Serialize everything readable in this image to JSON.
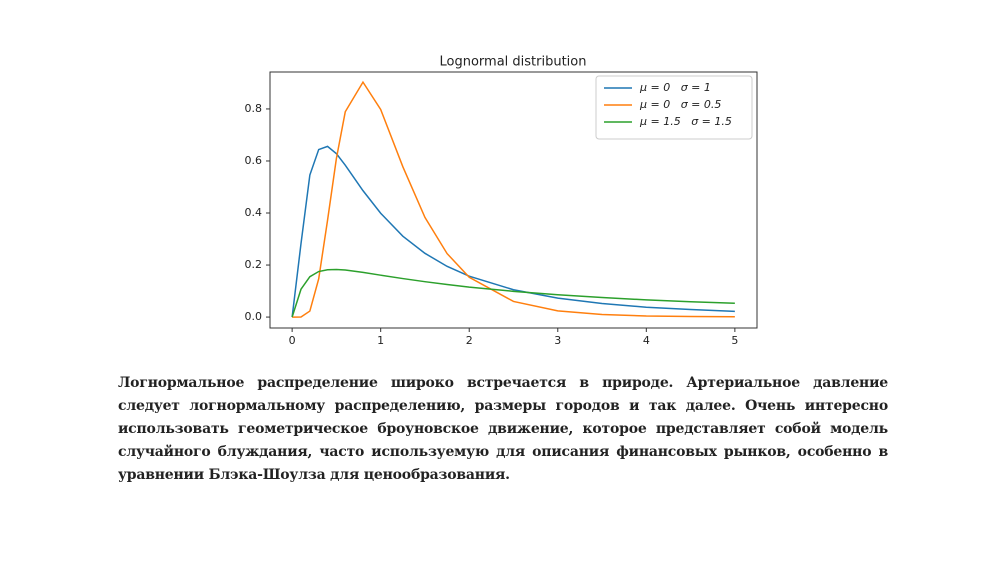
{
  "chart_data": {
    "type": "line",
    "title": "Lognormal distribution",
    "x": [
      0,
      0.1,
      0.2,
      0.3,
      0.4,
      0.5,
      0.6,
      0.8,
      1,
      1.25,
      1.5,
      1.75,
      2,
      2.5,
      3,
      3.5,
      4,
      4.5,
      5
    ],
    "series": [
      {
        "name": "μ = 0   σ = 1",
        "color": "#1f77b4",
        "values": [
          0,
          0.282,
          0.546,
          0.644,
          0.656,
          0.628,
          0.584,
          0.486,
          0.399,
          0.311,
          0.245,
          0.195,
          0.157,
          0.105,
          0.073,
          0.052,
          0.038,
          0.029,
          0.022
        ]
      },
      {
        "name": "μ = 0   σ = 0.5",
        "color": "#ff7f0e",
        "values": [
          0,
          0.0002,
          0.023,
          0.147,
          0.372,
          0.61,
          0.789,
          0.903,
          0.798,
          0.578,
          0.383,
          0.244,
          0.153,
          0.06,
          0.024,
          0.01,
          0.004,
          0.002,
          0.001
        ]
      },
      {
        "name": "μ = 1.5   σ = 1.5",
        "color": "#2ca02c",
        "values": [
          0,
          0.107,
          0.155,
          0.175,
          0.182,
          0.183,
          0.181,
          0.172,
          0.161,
          0.148,
          0.136,
          0.125,
          0.115,
          0.099,
          0.086,
          0.075,
          0.066,
          0.059,
          0.053
        ]
      }
    ],
    "xlim": [
      -0.25,
      5.25
    ],
    "ylim": [
      -0.042,
      0.942
    ],
    "xticks": [
      0,
      1,
      2,
      3,
      4,
      5
    ],
    "yticks": [
      {
        "value": 0,
        "label": "0.0"
      },
      0.2,
      0.4,
      0.6,
      0.8
    ],
    "grid": false,
    "legend": "upper right"
  },
  "paragraph": "Логнормальное распределение широко встречается в природе. Артериальное давление следует логнормальному распределению, размеры городов и так далее. Очень интересно использовать геометрическое броуновское движение, которое представляет собой модель случайного блуждания, часто используемую для описания финансовых рынков, особенно в уравнении Блэка-Шоулза для ценообразования."
}
